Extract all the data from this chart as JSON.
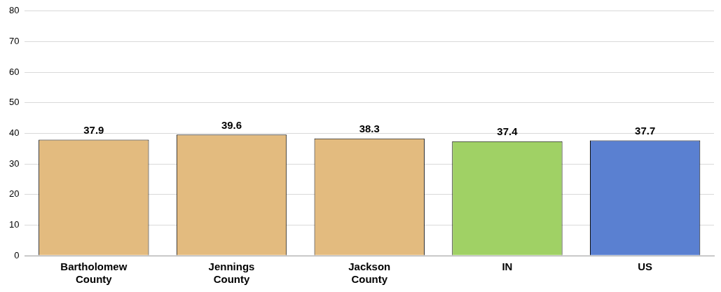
{
  "chart_data": {
    "type": "bar",
    "categories": [
      "Bartholomew County",
      "Jennings County",
      "Jackson County",
      "IN",
      "US"
    ],
    "values": [
      37.9,
      39.6,
      38.3,
      37.4,
      37.7
    ],
    "colors": [
      "#e3bb7f",
      "#e3bb7f",
      "#e3bb7f",
      "#a0d165",
      "#5a80d1"
    ],
    "ylim": [
      0,
      80
    ],
    "yticks": [
      0,
      10,
      20,
      30,
      40,
      50,
      60,
      70,
      80
    ],
    "grid": "y",
    "legend": false,
    "data_labels": true
  }
}
